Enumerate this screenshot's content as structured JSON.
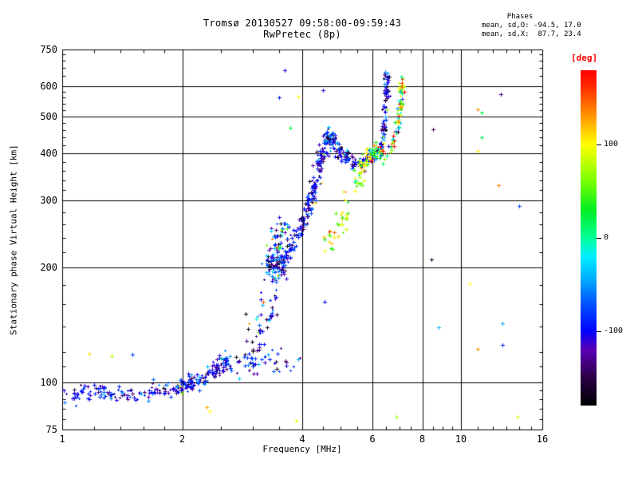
{
  "figure": {
    "background": "#ffffff",
    "accent_color": "#ff0000"
  },
  "chart_data": {
    "type": "scatter",
    "title": "Tromsø 20130527 09:58:00-09:59:43",
    "subtitle": "RwPretec (8p)",
    "xlabel": "Frequency [MHz]",
    "ylabel": "Stationary phase Virtual Height [km]",
    "x_scale": "log",
    "y_scale": "log",
    "xlim": [
      1,
      16
    ],
    "ylim": [
      75,
      750
    ],
    "x_ticks": [
      1,
      2,
      4,
      6,
      8,
      10,
      16
    ],
    "x_minor_ticks": [
      1.2,
      1.4,
      1.6,
      1.8,
      2.5,
      3,
      3.5,
      4.5,
      5,
      5.5,
      6.5,
      7,
      7.5,
      8.5,
      9,
      9.5,
      11,
      12,
      13,
      14,
      15
    ],
    "y_ticks": [
      75,
      100,
      200,
      300,
      400,
      500,
      600,
      750
    ],
    "y_minor_ticks": [
      80,
      85,
      90,
      95,
      110,
      120,
      140,
      160,
      180,
      220,
      240,
      260,
      280,
      320,
      340,
      360,
      380,
      420,
      440,
      460,
      480,
      520,
      540,
      560,
      580,
      640,
      670,
      700,
      730
    ],
    "x_grid": [
      2,
      4,
      6,
      8,
      10
    ],
    "y_grid": [
      100,
      200,
      300,
      400,
      500,
      600
    ],
    "grid": true,
    "annotation": {
      "title": "Phases",
      "line_o": "mean, sd,O: -94.5, 17.0",
      "line_x": "mean, sd,X:  87.7, 23.4"
    },
    "colorbar": {
      "label": "[deg]",
      "label_color": "#ff0000",
      "range": [
        -180,
        180
      ],
      "ticks": [
        100,
        0,
        -100
      ],
      "colormap_stops": [
        [
          -180,
          "#000000"
        ],
        [
          -150,
          "#2a0045"
        ],
        [
          -120,
          "#5a00b5"
        ],
        [
          -100,
          "#0000ff"
        ],
        [
          -70,
          "#0055ff"
        ],
        [
          -45,
          "#00aaff"
        ],
        [
          -20,
          "#00eeff"
        ],
        [
          0,
          "#00ff99"
        ],
        [
          30,
          "#00ee22"
        ],
        [
          60,
          "#77ff00"
        ],
        [
          100,
          "#ffff00"
        ],
        [
          135,
          "#ff8800"
        ],
        [
          165,
          "#ff2200"
        ],
        [
          180,
          "#ff0000"
        ]
      ]
    },
    "traces": [
      {
        "name": "e-region-o",
        "n": 260,
        "polyline": [
          [
            1.0,
            93
          ],
          [
            1.2,
            94
          ],
          [
            1.45,
            93
          ],
          [
            1.7,
            95
          ],
          [
            1.95,
            96
          ],
          [
            2.1,
            99
          ],
          [
            2.3,
            104
          ],
          [
            2.45,
            109
          ],
          [
            2.6,
            114
          ]
        ],
        "jf": 0.015,
        "jh": 0.025,
        "phase_mean": -100,
        "phase_sd": 28,
        "outlier_rate": 0.015
      },
      {
        "name": "sporadic-scatter",
        "n": 45,
        "polyline": [
          [
            2.65,
            108
          ],
          [
            3.0,
            112
          ],
          [
            3.4,
            112
          ],
          [
            3.8,
            115
          ]
        ],
        "jf": 0.03,
        "jh": 0.05,
        "phase_mean": -100,
        "phase_sd": 35,
        "outlier_rate": 0.05
      },
      {
        "name": "ef-funnel",
        "n": 50,
        "polyline": [
          [
            2.95,
            118
          ],
          [
            3.05,
            128
          ],
          [
            3.15,
            140
          ],
          [
            3.25,
            155
          ],
          [
            3.32,
            168
          ]
        ],
        "jf": 0.03,
        "jh": 0.08,
        "phase_mean": -110,
        "phase_sd": 45,
        "outlier_rate": 0.06
      },
      {
        "name": "f-blob-200",
        "n": 90,
        "polyline": [
          [
            3.32,
            198
          ],
          [
            3.42,
            202
          ],
          [
            3.52,
            208
          ]
        ],
        "jf": 0.025,
        "jh": 0.05,
        "phase_mean": -100,
        "phase_sd": 45,
        "outlier_rate": 0.05
      },
      {
        "name": "f-clump-250",
        "n": 40,
        "polyline": [
          [
            3.4,
            232
          ],
          [
            3.5,
            242
          ],
          [
            3.6,
            252
          ]
        ],
        "jf": 0.025,
        "jh": 0.05,
        "phase_mean": -90,
        "phase_sd": 60,
        "outlier_rate": 0.1
      },
      {
        "name": "f-rise-o",
        "n": 220,
        "polyline": [
          [
            3.55,
            205
          ],
          [
            3.75,
            225
          ],
          [
            3.95,
            250
          ],
          [
            4.1,
            275
          ],
          [
            4.2,
            300
          ],
          [
            4.3,
            330
          ],
          [
            4.4,
            365
          ],
          [
            4.5,
            400
          ],
          [
            4.6,
            430
          ],
          [
            4.68,
            450
          ]
        ],
        "jf": 0.012,
        "jh": 0.03,
        "phase_mean": -105,
        "phase_sd": 30,
        "outlier_rate": 0.02
      },
      {
        "name": "f-cusp-down-o",
        "n": 120,
        "polyline": [
          [
            4.72,
            445
          ],
          [
            4.8,
            430
          ],
          [
            4.9,
            410
          ],
          [
            5.05,
            395
          ],
          [
            5.25,
            385
          ],
          [
            5.5,
            378
          ],
          [
            5.7,
            382
          ],
          [
            5.95,
            393
          ],
          [
            6.15,
            400
          ]
        ],
        "jf": 0.01,
        "jh": 0.02,
        "phase_mean": -100,
        "phase_sd": 32,
        "outlier_rate": 0.03
      },
      {
        "name": "second-rise-o",
        "n": 90,
        "polyline": [
          [
            6.25,
            405
          ],
          [
            6.35,
            430
          ],
          [
            6.42,
            470
          ],
          [
            6.46,
            520
          ],
          [
            6.48,
            570
          ],
          [
            6.5,
            620
          ],
          [
            6.52,
            650
          ]
        ],
        "jf": 0.008,
        "jh": 0.02,
        "phase_mean": -110,
        "phase_sd": 40,
        "outlier_rate": 0.05
      },
      {
        "name": "x-mode-lower",
        "n": 35,
        "polyline": [
          [
            4.6,
            232
          ],
          [
            4.8,
            245
          ],
          [
            5.0,
            265
          ],
          [
            5.15,
            290
          ],
          [
            5.3,
            315
          ]
        ],
        "jf": 0.02,
        "jh": 0.04,
        "phase_mean": 85,
        "phase_sd": 40,
        "outlier_rate": 0
      },
      {
        "name": "x-mode-mid",
        "n": 55,
        "polyline": [
          [
            5.35,
            320
          ],
          [
            5.5,
            345
          ],
          [
            5.65,
            370
          ],
          [
            5.8,
            392
          ],
          [
            6.0,
            408
          ],
          [
            6.2,
            400
          ]
        ],
        "jf": 0.012,
        "jh": 0.03,
        "phase_mean": 75,
        "phase_sd": 38,
        "outlier_rate": 0.05
      },
      {
        "name": "convergence-blob",
        "n": 45,
        "polyline": [
          [
            5.9,
            398
          ],
          [
            6.1,
            400
          ],
          [
            6.4,
            402
          ]
        ],
        "jf": 0.02,
        "jh": 0.025,
        "phase_mean": 50,
        "phase_sd": 95,
        "outlier_rate": 0
      },
      {
        "name": "second-rise-x",
        "n": 75,
        "polyline": [
          [
            6.55,
            400
          ],
          [
            6.75,
            425
          ],
          [
            6.9,
            460
          ],
          [
            7.0,
            500
          ],
          [
            7.05,
            545
          ],
          [
            7.08,
            590
          ],
          [
            7.1,
            625
          ]
        ],
        "jf": 0.008,
        "jh": 0.02,
        "phase_mean": 60,
        "phase_sd": 85,
        "outlier_rate": 0
      }
    ],
    "extra_points": [
      [
        1.17,
        119,
        110
      ],
      [
        1.33,
        117,
        75
      ],
      [
        1.5,
        118,
        -80
      ],
      [
        2.3,
        86,
        125
      ],
      [
        2.34,
        84,
        100
      ],
      [
        3.85,
        79,
        95
      ],
      [
        3.5,
        560,
        -95
      ],
      [
        3.62,
        660,
        -105
      ],
      [
        3.9,
        565,
        100
      ],
      [
        3.73,
        466,
        25
      ],
      [
        4.5,
        585,
        -110
      ],
      [
        4.55,
        163,
        -100
      ],
      [
        6.9,
        81,
        70
      ],
      [
        13.9,
        81,
        80
      ],
      [
        8.8,
        139,
        -40
      ],
      [
        12.7,
        143,
        -45
      ],
      [
        12.7,
        125,
        -90
      ],
      [
        11.0,
        122,
        135
      ],
      [
        10.5,
        182,
        100
      ],
      [
        14.0,
        290,
        -75
      ],
      [
        12.4,
        330,
        140
      ],
      [
        8.45,
        210,
        -155
      ],
      [
        8.5,
        462,
        -140
      ],
      [
        11.3,
        440,
        20
      ],
      [
        11.0,
        405,
        105
      ],
      [
        11.3,
        512,
        25
      ],
      [
        11.0,
        521,
        135
      ],
      [
        12.6,
        573,
        -135
      ]
    ]
  }
}
